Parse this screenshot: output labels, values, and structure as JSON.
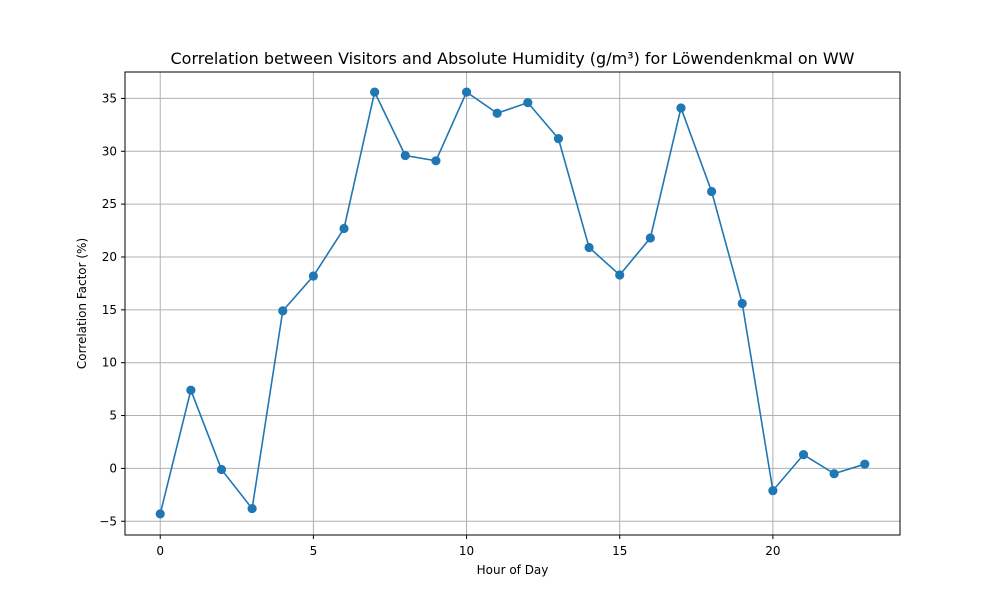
{
  "chart_data": {
    "type": "line",
    "title": "Correlation between Visitors and Absolute Humidity (g/m³) for Löwendenkmal on WW",
    "xlabel": "Hour of Day",
    "ylabel": "Correlation Factor (%)",
    "xlim": [
      -1.15,
      24.15
    ],
    "ylim": [
      -6.3,
      37.5
    ],
    "xticks": [
      0,
      5,
      10,
      15,
      20
    ],
    "yticks": [
      -5,
      0,
      5,
      10,
      15,
      20,
      25,
      30,
      35
    ],
    "xtick_labels": [
      "0",
      "5",
      "10",
      "15",
      "20"
    ],
    "ytick_labels": [
      "−5",
      "0",
      "5",
      "10",
      "15",
      "20",
      "25",
      "30",
      "35"
    ],
    "grid": true,
    "marker": "circle",
    "x": [
      0,
      1,
      2,
      3,
      4,
      5,
      6,
      7,
      8,
      9,
      10,
      11,
      12,
      13,
      14,
      15,
      16,
      17,
      18,
      19,
      20,
      21,
      22,
      23
    ],
    "series": [
      {
        "color": "#1f77b4",
        "values": [
          -4.3,
          7.4,
          -0.1,
          -3.8,
          14.9,
          18.2,
          22.7,
          35.6,
          29.6,
          29.1,
          35.6,
          33.6,
          34.6,
          31.2,
          20.9,
          18.3,
          21.8,
          34.1,
          26.2,
          15.6,
          -2.1,
          1.3,
          -0.5,
          0.4
        ]
      }
    ],
    "colors": {
      "line": "#1f77b4",
      "grid": "#b0b0b0",
      "axes": "#000000",
      "background": "#ffffff"
    }
  }
}
